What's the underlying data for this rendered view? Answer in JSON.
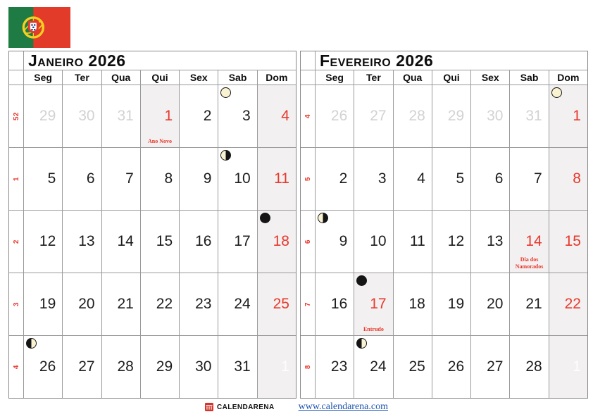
{
  "colors": {
    "red": "#e8382c",
    "link_blue": "#1a53b0",
    "shaded_bg": "#f2f0f0",
    "adjacent_gray": "#d2d2d2",
    "grid_line": "#9a9a9a",
    "flag_green": "#1e7b44",
    "flag_red": "#e23b2a",
    "flag_yellow": "#f5d020",
    "moon_cream": "#faf3d2"
  },
  "flag": {
    "country": "Portugal"
  },
  "day_headers": [
    "Seg",
    "Ter",
    "Qua",
    "Qui",
    "Sex",
    "Sab",
    "Dom"
  ],
  "footer": {
    "brand": "CALENDARENA",
    "url": "www.calendarena.com"
  },
  "months": [
    {
      "id": "month-janeiro-2026",
      "title": "Janeiro 2026",
      "weeks": [
        {
          "week": "52",
          "days": [
            {
              "n": "29",
              "t": "adjacent"
            },
            {
              "n": "30",
              "t": "adjacent"
            },
            {
              "n": "31",
              "t": "adjacent"
            },
            {
              "n": "1",
              "t": "red",
              "shaded": true,
              "label": "Ano Novo"
            },
            {
              "n": "2",
              "t": "normal"
            },
            {
              "n": "3",
              "t": "normal",
              "moon": "full"
            },
            {
              "n": "4",
              "t": "red",
              "shaded": true
            }
          ]
        },
        {
          "week": "1",
          "days": [
            {
              "n": "5",
              "t": "normal"
            },
            {
              "n": "6",
              "t": "normal"
            },
            {
              "n": "7",
              "t": "normal"
            },
            {
              "n": "8",
              "t": "normal"
            },
            {
              "n": "9",
              "t": "normal"
            },
            {
              "n": "10",
              "t": "normal",
              "moon": "last-quarter"
            },
            {
              "n": "11",
              "t": "red",
              "shaded": true
            }
          ]
        },
        {
          "week": "2",
          "days": [
            {
              "n": "12",
              "t": "normal"
            },
            {
              "n": "13",
              "t": "normal"
            },
            {
              "n": "14",
              "t": "normal"
            },
            {
              "n": "15",
              "t": "normal"
            },
            {
              "n": "16",
              "t": "normal"
            },
            {
              "n": "17",
              "t": "normal"
            },
            {
              "n": "18",
              "t": "red",
              "shaded": true,
              "moon": "new"
            }
          ]
        },
        {
          "week": "3",
          "days": [
            {
              "n": "19",
              "t": "normal"
            },
            {
              "n": "20",
              "t": "normal"
            },
            {
              "n": "21",
              "t": "normal"
            },
            {
              "n": "22",
              "t": "normal"
            },
            {
              "n": "23",
              "t": "normal"
            },
            {
              "n": "24",
              "t": "normal"
            },
            {
              "n": "25",
              "t": "red",
              "shaded": true
            }
          ]
        },
        {
          "week": "4",
          "days": [
            {
              "n": "26",
              "t": "normal",
              "moon": "first-quarter"
            },
            {
              "n": "27",
              "t": "normal"
            },
            {
              "n": "28",
              "t": "normal"
            },
            {
              "n": "29",
              "t": "normal"
            },
            {
              "n": "30",
              "t": "normal"
            },
            {
              "n": "31",
              "t": "normal"
            },
            {
              "n": "1",
              "t": "ghost",
              "shaded": true
            }
          ]
        }
      ]
    },
    {
      "id": "month-fevereiro-2026",
      "title": "Fevereiro 2026",
      "weeks": [
        {
          "week": "4",
          "days": [
            {
              "n": "26",
              "t": "adjacent"
            },
            {
              "n": "27",
              "t": "adjacent"
            },
            {
              "n": "28",
              "t": "adjacent"
            },
            {
              "n": "29",
              "t": "adjacent"
            },
            {
              "n": "30",
              "t": "adjacent"
            },
            {
              "n": "31",
              "t": "adjacent"
            },
            {
              "n": "1",
              "t": "red",
              "shaded": true,
              "moon": "full"
            }
          ]
        },
        {
          "week": "5",
          "days": [
            {
              "n": "2",
              "t": "normal"
            },
            {
              "n": "3",
              "t": "normal"
            },
            {
              "n": "4",
              "t": "normal"
            },
            {
              "n": "5",
              "t": "normal"
            },
            {
              "n": "6",
              "t": "normal"
            },
            {
              "n": "7",
              "t": "normal"
            },
            {
              "n": "8",
              "t": "red",
              "shaded": true
            }
          ]
        },
        {
          "week": "6",
          "days": [
            {
              "n": "9",
              "t": "normal",
              "moon": "last-quarter"
            },
            {
              "n": "10",
              "t": "normal"
            },
            {
              "n": "11",
              "t": "normal"
            },
            {
              "n": "12",
              "t": "normal"
            },
            {
              "n": "13",
              "t": "normal"
            },
            {
              "n": "14",
              "t": "red",
              "shaded": true,
              "label": "Dia dos Namorados"
            },
            {
              "n": "15",
              "t": "red",
              "shaded": true
            }
          ]
        },
        {
          "week": "7",
          "days": [
            {
              "n": "16",
              "t": "normal"
            },
            {
              "n": "17",
              "t": "red",
              "shaded": true,
              "label": "Entrudo",
              "moon": "new"
            },
            {
              "n": "18",
              "t": "normal"
            },
            {
              "n": "19",
              "t": "normal"
            },
            {
              "n": "20",
              "t": "normal"
            },
            {
              "n": "21",
              "t": "normal"
            },
            {
              "n": "22",
              "t": "red",
              "shaded": true
            }
          ]
        },
        {
          "week": "8",
          "days": [
            {
              "n": "23",
              "t": "normal"
            },
            {
              "n": "24",
              "t": "normal",
              "moon": "first-quarter"
            },
            {
              "n": "25",
              "t": "normal"
            },
            {
              "n": "26",
              "t": "normal"
            },
            {
              "n": "27",
              "t": "normal"
            },
            {
              "n": "28",
              "t": "normal"
            },
            {
              "n": "1",
              "t": "ghost",
              "shaded": true
            }
          ]
        }
      ]
    }
  ]
}
